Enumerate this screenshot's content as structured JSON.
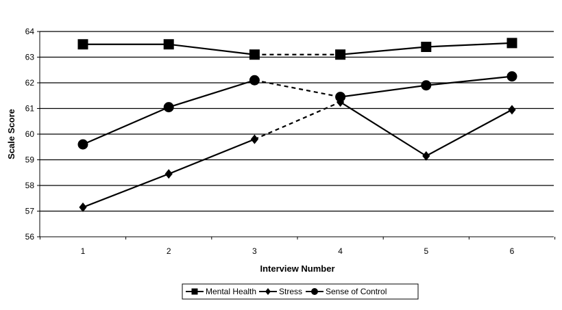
{
  "chart_data": {
    "type": "line",
    "title": "",
    "xlabel": "Interview Number",
    "ylabel": "Scale Score",
    "x": [
      1,
      2,
      3,
      4,
      5,
      6
    ],
    "x_tick_labels": [
      "1",
      "2",
      "3",
      "4",
      "5",
      "6"
    ],
    "ylim": [
      56,
      64
    ],
    "y_ticks": [
      56,
      57,
      58,
      59,
      60,
      61,
      62,
      63,
      64
    ],
    "y_tick_labels": [
      "56",
      "57",
      "58",
      "59",
      "60",
      "61",
      "62",
      "63",
      "64"
    ],
    "grid": "horizontal",
    "legend_position": "bottom",
    "dashed_segment": {
      "from_x": 3,
      "to_x": 4
    },
    "series": [
      {
        "name": "Mental Health",
        "marker": "square",
        "color": "#000000",
        "values": [
          63.5,
          63.5,
          63.1,
          63.1,
          63.4,
          63.55
        ]
      },
      {
        "name": "Stress",
        "marker": "diamond",
        "color": "#000000",
        "values": [
          57.15,
          58.45,
          59.8,
          61.25,
          59.15,
          60.95
        ]
      },
      {
        "name": "Sense of Control",
        "marker": "circle",
        "color": "#000000",
        "values": [
          59.6,
          61.05,
          62.1,
          61.45,
          61.9,
          62.25
        ]
      }
    ]
  }
}
